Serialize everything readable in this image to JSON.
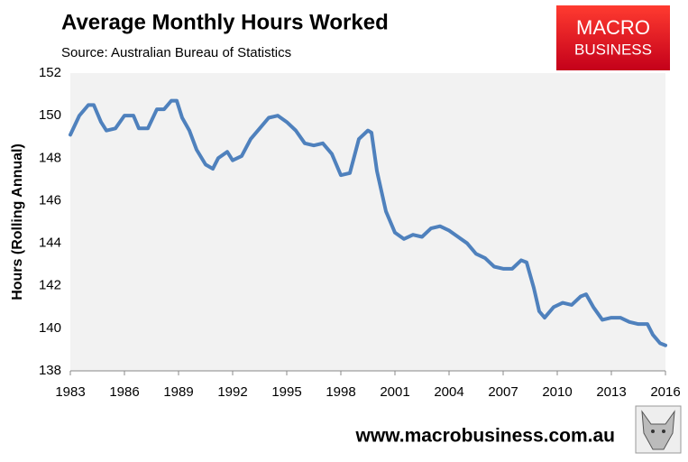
{
  "chart_data": {
    "type": "line",
    "title": "Average Monthly Hours Worked",
    "subtitle": "Source: Australian Bureau of Statistics",
    "y_label": "Hours (Rolling Annual)",
    "x": [
      1983,
      1983.5,
      1984,
      1984.3,
      1984.7,
      1985,
      1985.5,
      1986,
      1986.5,
      1986.8,
      1987.3,
      1987.8,
      1988.2,
      1988.6,
      1988.9,
      1989.2,
      1989.6,
      1990,
      1990.5,
      1990.9,
      1991.2,
      1991.7,
      1992,
      1992.5,
      1993,
      1993.5,
      1994,
      1994.5,
      1995,
      1995.5,
      1996,
      1996.5,
      1997,
      1997.5,
      1998,
      1998.5,
      1999,
      1999.5,
      1999.7,
      2000,
      2000.5,
      2001,
      2001.5,
      2002,
      2002.5,
      2003,
      2003.5,
      2004,
      2004.5,
      2005,
      2005.5,
      2006,
      2006.5,
      2007,
      2007.5,
      2008,
      2008.3,
      2008.7,
      2009,
      2009.3,
      2009.8,
      2010.3,
      2010.8,
      2011.3,
      2011.6,
      2012,
      2012.5,
      2013,
      2013.5,
      2014,
      2014.5,
      2015,
      2015.3,
      2015.7,
      2016
    ],
    "series": [
      {
        "name": "Average Monthly Hours Worked",
        "color": "#4f81bd",
        "values": [
          149.1,
          150.0,
          150.5,
          150.5,
          149.7,
          149.3,
          149.4,
          150.0,
          150.0,
          149.4,
          149.4,
          150.3,
          150.3,
          150.7,
          150.7,
          149.9,
          149.3,
          148.4,
          147.7,
          147.5,
          148.0,
          148.3,
          147.9,
          148.1,
          148.9,
          149.4,
          149.9,
          150.0,
          149.7,
          149.3,
          148.7,
          148.6,
          148.7,
          148.2,
          147.2,
          147.3,
          148.9,
          149.3,
          149.2,
          147.4,
          145.5,
          144.5,
          144.2,
          144.4,
          144.3,
          144.7,
          144.8,
          144.6,
          144.3,
          144.0,
          143.5,
          143.3,
          142.9,
          142.8,
          142.8,
          143.2,
          143.1,
          141.9,
          140.8,
          140.5,
          141.0,
          141.2,
          141.1,
          141.5,
          141.6,
          141.0,
          140.4,
          140.5,
          140.5,
          140.3,
          140.2,
          140.2,
          139.7,
          139.3,
          139.2
        ]
      }
    ],
    "xlim": [
      1983,
      2016
    ],
    "xticks": [
      1983,
      1986,
      1989,
      1992,
      1995,
      1998,
      2001,
      2004,
      2007,
      2010,
      2013,
      2016
    ],
    "ylim": [
      138,
      152
    ],
    "yticks": [
      138,
      140,
      142,
      144,
      146,
      148,
      150,
      152
    ],
    "grid": false
  },
  "logo": {
    "line1": "MACRO",
    "line2": "BUSINESS"
  },
  "footer": "www.macrobusiness.com.au"
}
